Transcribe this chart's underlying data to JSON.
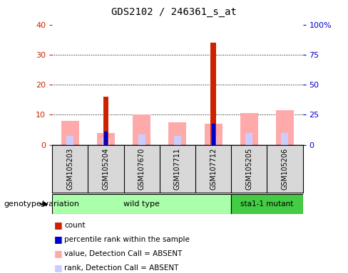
{
  "title": "GDS2102 / 246361_s_at",
  "samples": [
    "GSM105203",
    "GSM105204",
    "GSM107670",
    "GSM107711",
    "GSM107712",
    "GSM105205",
    "GSM105206"
  ],
  "count_values": [
    0,
    16,
    0,
    0,
    34,
    0,
    0
  ],
  "pink_bar_heights": [
    8,
    4,
    10,
    7.5,
    7,
    10.5,
    11.5
  ],
  "lavender_bar_heights": [
    3,
    2.5,
    3.5,
    3,
    3,
    4,
    4
  ],
  "blue_dot_heights": [
    0,
    4.5,
    0,
    0,
    7,
    0,
    0
  ],
  "ylim_left": [
    0,
    40
  ],
  "ylim_right": [
    0,
    100
  ],
  "yticks_left": [
    0,
    10,
    20,
    30,
    40
  ],
  "yticks_right": [
    0,
    25,
    50,
    75,
    100
  ],
  "yticklabels_right": [
    "0",
    "25",
    "50",
    "75",
    "100%"
  ],
  "left_tick_color": "#cc2200",
  "right_tick_color": "#0000cc",
  "wild_type_count": 5,
  "mutant_count": 2,
  "genotype_label": "genotype/variation",
  "wild_type_label": "wild type",
  "mutant_label": "sta1-1 mutant",
  "legend_items": [
    {
      "label": "count",
      "color": "#cc2200"
    },
    {
      "label": "percentile rank within the sample",
      "color": "#0000cc"
    },
    {
      "label": "value, Detection Call = ABSENT",
      "color": "#ffaaaa"
    },
    {
      "label": "rank, Detection Call = ABSENT",
      "color": "#ccccff"
    }
  ],
  "bg_color": "#d8d8d8",
  "plot_bg": "#ffffff",
  "wt_color": "#aaffaa",
  "mut_color": "#44cc44",
  "pink_bar_width": 0.5,
  "lavender_bar_width": 0.2,
  "red_bar_width": 0.15,
  "blue_bar_width": 0.1
}
